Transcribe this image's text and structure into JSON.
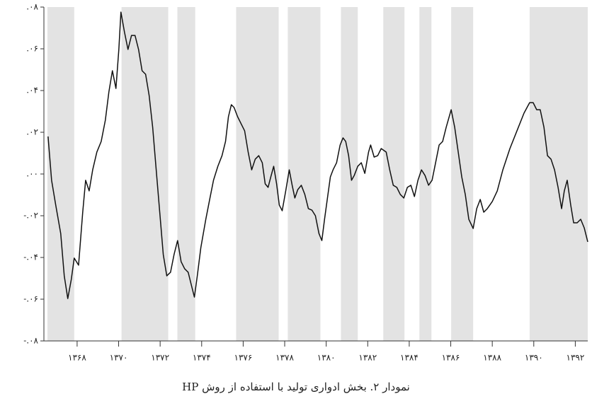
{
  "chart_data": {
    "type": "line",
    "title": "نمودار ۲. بخش ادواری تولید با استفاده از روش HP",
    "color": "#111111",
    "shade_color": "#e3e3e3",
    "xlim": [
      1366.4,
      1392.6
    ],
    "ylim": [
      -0.08,
      0.08
    ],
    "yticks": [
      {
        "value": 0.08,
        "label": ".۰۸"
      },
      {
        "value": 0.06,
        "label": ".۰۶"
      },
      {
        "value": 0.04,
        "label": ".۰۴"
      },
      {
        "value": 0.02,
        "label": ".۰۲"
      },
      {
        "value": 0,
        "label": ".۰۰"
      },
      {
        "value": -0.02,
        "label": "-.۰۲"
      },
      {
        "value": -0.04,
        "label": "-.۰۴"
      },
      {
        "value": -0.06,
        "label": "-.۰۶"
      },
      {
        "value": -0.08,
        "label": "-.۰۸"
      }
    ],
    "xticks": [
      {
        "value": 1368,
        "label": "۱۳۶۸"
      },
      {
        "value": 1370,
        "label": "۱۳۷۰"
      },
      {
        "value": 1372,
        "label": "۱۳۷۲"
      },
      {
        "value": 1374,
        "label": "۱۳۷۴"
      },
      {
        "value": 1376,
        "label": "۱۳۷۶"
      },
      {
        "value": 1378,
        "label": "۱۳۷۸"
      },
      {
        "value": 1380,
        "label": "۱۳۸۰"
      },
      {
        "value": 1382,
        "label": "۱۳۸۲"
      },
      {
        "value": 1384,
        "label": "۱۳۸۴"
      },
      {
        "value": 1386,
        "label": "۱۳۸۶"
      },
      {
        "value": 1388,
        "label": "۱۳۸۸"
      },
      {
        "value": 1390,
        "label": "۱۳۹۰"
      },
      {
        "value": 1392,
        "label": "۱۳۹۲"
      }
    ],
    "shaded": [
      [
        1366.57,
        1367.86
      ],
      [
        1370.14,
        1372.39
      ],
      [
        1372.83,
        1373.69
      ],
      [
        1375.66,
        1377.71
      ],
      [
        1378.15,
        1379.72
      ],
      [
        1380.71,
        1381.52
      ],
      [
        1382.75,
        1383.77
      ],
      [
        1384.49,
        1385.07
      ],
      [
        1386.02,
        1387.08
      ],
      [
        1389.8,
        1392.6
      ]
    ],
    "x": [
      1366.6,
      1366.77,
      1366.97,
      1367.21,
      1367.38,
      1367.55,
      1367.72,
      1367.86,
      1368.07,
      1368.27,
      1368.41,
      1368.58,
      1368.75,
      1368.95,
      1369.16,
      1369.36,
      1369.53,
      1369.7,
      1369.87,
      1370.01,
      1370.11,
      1370.28,
      1370.45,
      1370.62,
      1370.79,
      1370.96,
      1371.13,
      1371.3,
      1371.47,
      1371.64,
      1371.81,
      1371.98,
      1372.15,
      1372.32,
      1372.5,
      1372.67,
      1372.84,
      1373.01,
      1373.18,
      1373.35,
      1373.52,
      1373.65,
      1373.79,
      1373.96,
      1374.2,
      1374.4,
      1374.57,
      1374.78,
      1374.98,
      1375.15,
      1375.29,
      1375.43,
      1375.56,
      1375.73,
      1375.9,
      1376.07,
      1376.24,
      1376.41,
      1376.58,
      1376.75,
      1376.92,
      1377.06,
      1377.2,
      1377.33,
      1377.47,
      1377.61,
      1377.74,
      1377.88,
      1378.05,
      1378.22,
      1378.36,
      1378.49,
      1378.63,
      1378.8,
      1378.97,
      1379.14,
      1379.31,
      1379.48,
      1379.65,
      1379.79,
      1379.92,
      1380.06,
      1380.2,
      1380.33,
      1380.5,
      1380.67,
      1380.81,
      1380.94,
      1381.08,
      1381.22,
      1381.35,
      1381.52,
      1381.69,
      1381.86,
      1382.04,
      1382.14,
      1382.31,
      1382.48,
      1382.65,
      1382.89,
      1383.06,
      1383.23,
      1383.4,
      1383.57,
      1383.74,
      1383.91,
      1384.08,
      1384.25,
      1384.42,
      1384.59,
      1384.76,
      1384.93,
      1385.1,
      1385.27,
      1385.44,
      1385.61,
      1385.78,
      1386.02,
      1386.19,
      1386.36,
      1386.53,
      1386.7,
      1386.87,
      1387.08,
      1387.25,
      1387.42,
      1387.59,
      1387.76,
      1388.0,
      1388.24,
      1388.51,
      1388.85,
      1389.19,
      1389.53,
      1389.8,
      1389.97,
      1390.14,
      1390.31,
      1390.49,
      1390.66,
      1390.83,
      1391.0,
      1391.17,
      1391.34,
      1391.47,
      1391.61,
      1391.78,
      1391.92,
      1392.09,
      1392.26,
      1392.43,
      1392.6
    ],
    "values": [
      0.018,
      -0.003,
      -0.0149,
      -0.0285,
      -0.0488,
      -0.0597,
      -0.0505,
      -0.0403,
      -0.0437,
      -0.0183,
      -0.003,
      -0.0081,
      0.002,
      0.0105,
      0.0156,
      0.0258,
      0.0393,
      0.0495,
      0.041,
      0.0597,
      0.0776,
      0.0681,
      0.0597,
      0.0664,
      0.0664,
      0.0597,
      0.0495,
      0.0478,
      0.0376,
      0.0224,
      0.002,
      -0.0183,
      -0.0386,
      -0.0488,
      -0.0471,
      -0.0386,
      -0.0319,
      -0.042,
      -0.0454,
      -0.0471,
      -0.0539,
      -0.059,
      -0.0488,
      -0.0353,
      -0.0217,
      -0.0115,
      -0.003,
      0.0037,
      0.0088,
      0.0156,
      0.0275,
      0.0332,
      0.0319,
      0.0275,
      0.0241,
      0.0207,
      0.0105,
      0.002,
      0.0071,
      0.0088,
      0.0054,
      -0.0047,
      -0.0064,
      -0.0014,
      0.0037,
      -0.0047,
      -0.0149,
      -0.0176,
      -0.0081,
      0.002,
      -0.0054,
      -0.0115,
      -0.0075,
      -0.0054,
      -0.0098,
      -0.0166,
      -0.0173,
      -0.02,
      -0.0285,
      -0.0319,
      -0.0217,
      -0.0115,
      -0.0014,
      0.002,
      0.0054,
      0.0139,
      0.0173,
      0.0156,
      0.0088,
      -0.003,
      -0.0007,
      0.0037,
      0.0054,
      0.0003,
      0.0105,
      0.0139,
      0.0081,
      0.0088,
      0.0122,
      0.0105,
      0.002,
      -0.0054,
      -0.0064,
      -0.0098,
      -0.0115,
      -0.0064,
      -0.0054,
      -0.0108,
      -0.003,
      0.002,
      -0.0007,
      -0.0054,
      -0.003,
      0.0054,
      0.0139,
      0.0156,
      0.0224,
      0.0308,
      0.0224,
      0.0105,
      -0.0014,
      -0.0098,
      -0.0217,
      -0.0261,
      -0.0166,
      -0.0122,
      -0.0183,
      -0.0166,
      -0.0132,
      -0.0081,
      0.002,
      0.0122,
      0.0207,
      0.0292,
      0.0342,
      0.0342,
      0.0308,
      0.0308,
      0.0224,
      0.0088,
      0.0071,
      0.002,
      -0.0064,
      -0.0166,
      -0.0081,
      -0.003,
      -0.0149,
      -0.0234,
      -0.0234,
      -0.0217,
      -0.0258,
      -0.0325
    ]
  }
}
